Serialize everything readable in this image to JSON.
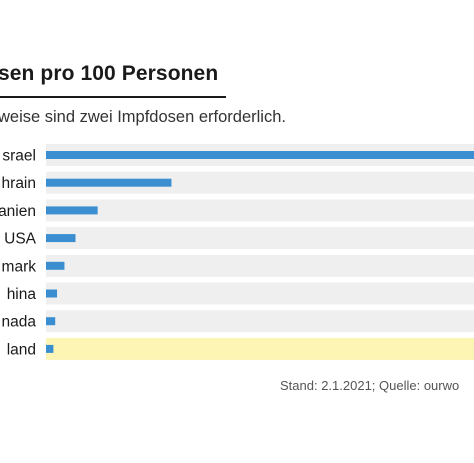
{
  "header": {
    "title": "sen pro 100 Personen",
    "subtitle": "weise sind zwei Impfdosen erforderlich."
  },
  "footer": {
    "source": "Stand: 2.1.2021; Quelle: ourwo"
  },
  "colors": {
    "bar": "#3b8fd0",
    "track": "#efefef",
    "highlight": "#fcf5b3"
  },
  "chart_data": {
    "type": "bar",
    "orientation": "horizontal",
    "categories": [
      "srael",
      "hrain",
      "anien",
      "USA",
      "mark",
      "hina",
      "nada",
      "land"
    ],
    "values": [
      11.6,
      3.4,
      1.4,
      0.8,
      0.5,
      0.3,
      0.25,
      0.2
    ],
    "xlim": [
      0,
      11.6
    ],
    "highlight_category": "land",
    "grid": false,
    "legend": false
  }
}
